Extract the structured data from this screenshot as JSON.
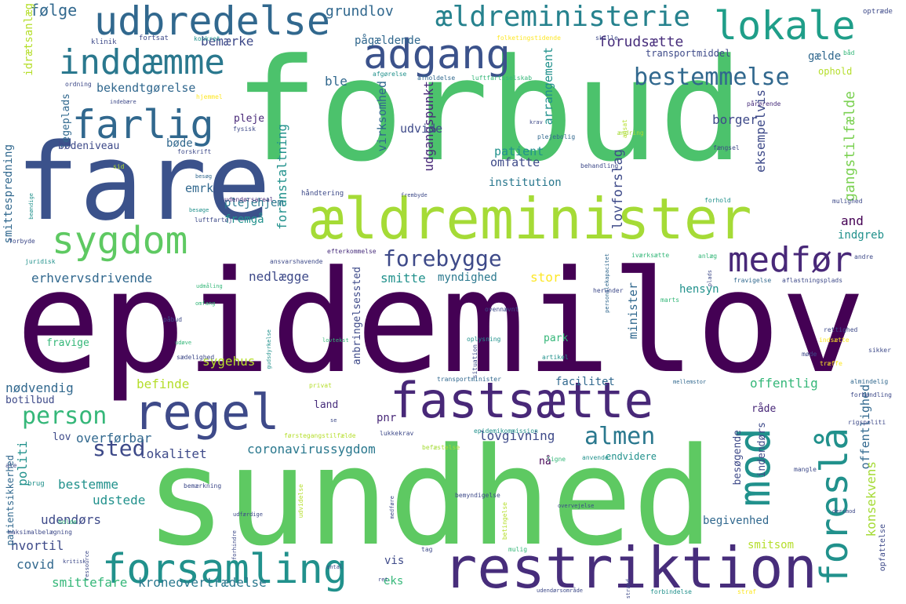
{
  "words": [
    {
      "text": "epidemilov",
      "color": "#440154"
    },
    {
      "text": "forbud",
      "color": "#4cc26c"
    },
    {
      "text": "sundhed",
      "color": "#5ec962"
    },
    {
      "text": "fare",
      "color": "#3b528b"
    },
    {
      "text": "ældreminister",
      "color": "#a5db36"
    },
    {
      "text": "restriktion",
      "color": "#472d7b"
    },
    {
      "text": "fastsætte",
      "color": "#482878"
    },
    {
      "text": "regel",
      "color": "#3e4a89"
    },
    {
      "text": "forsamling",
      "color": "#21918c"
    },
    {
      "text": "adgang",
      "color": "#3b528b"
    },
    {
      "text": "udbredelse",
      "color": "#31688e"
    },
    {
      "text": "inddæmme",
      "color": "#2a788e"
    },
    {
      "text": "lokale",
      "color": "#1f9e89"
    },
    {
      "text": "farlig",
      "color": "#31688e"
    },
    {
      "text": "sygdom",
      "color": "#5ec962"
    },
    {
      "text": "mod",
      "color": "#21918c"
    },
    {
      "text": "medfør",
      "color": "#482878"
    },
    {
      "text": "foreslå",
      "color": "#21918c"
    },
    {
      "text": "ældreministerie",
      "color": "#26828e"
    },
    {
      "text": "bestemmelse",
      "color": "#31688e"
    },
    {
      "text": "forebygge",
      "color": "#3e4a89"
    },
    {
      "text": "person",
      "color": "#35b779"
    },
    {
      "text": "almen",
      "color": "#2a788e"
    },
    {
      "text": "sted",
      "color": "#3e4a89"
    },
    {
      "text": "følge",
      "color": "#31688e"
    },
    {
      "text": "grundlov",
      "color": "#31688e"
    },
    {
      "text": "bemærke",
      "color": "#3e4a89"
    },
    {
      "text": "pågældende",
      "color": "#31688e"
    },
    {
      "text": "forudsætte",
      "color": "#472d7b"
    },
    {
      "text": "transportmiddel",
      "color": "#3e4a89"
    },
    {
      "text": "gælde",
      "color": "#31688e"
    },
    {
      "text": "ophold",
      "color": "#b5de2b"
    },
    {
      "text": "bekendtgørelse",
      "color": "#31688e"
    },
    {
      "text": "legeplads",
      "color": "#31688e"
    },
    {
      "text": "idrætsanlæg",
      "color": "#b5de2b"
    },
    {
      "text": "ble",
      "color": "#31688e"
    },
    {
      "text": "virksomhed",
      "color": "#31688e"
    },
    {
      "text": "udgangspunkt",
      "color": "#482878"
    },
    {
      "text": "arrangement",
      "color": "#21918c"
    },
    {
      "text": "eksempelvis",
      "color": "#3e4a89"
    },
    {
      "text": "gangstilfælde",
      "color": "#7ad151"
    },
    {
      "text": "borger",
      "color": "#3e4a89"
    },
    {
      "text": "pleje",
      "color": "#482878"
    },
    {
      "text": "udvide",
      "color": "#3e4a89"
    },
    {
      "text": "patient",
      "color": "#21918c"
    },
    {
      "text": "bøde",
      "color": "#31688e"
    },
    {
      "text": "bødeniveau",
      "color": "#3e4a89"
    },
    {
      "text": "omfatte",
      "color": "#3e4a89"
    },
    {
      "text": "emrk",
      "color": "#31688e"
    },
    {
      "text": "foranstaltning",
      "color": "#21918c"
    },
    {
      "text": "institution",
      "color": "#2a788e"
    },
    {
      "text": "plejehjem",
      "color": "#2a788e"
    },
    {
      "text": "fremgå",
      "color": "#21918c"
    },
    {
      "text": "lovforslag",
      "color": "#3e4a89"
    },
    {
      "text": "and",
      "color": "#440154"
    },
    {
      "text": "indgreb",
      "color": "#21918c"
    },
    {
      "text": "nedlægge",
      "color": "#3e4a89"
    },
    {
      "text": "erhvervsdrivende",
      "color": "#31688e"
    },
    {
      "text": "smitte",
      "color": "#21918c"
    },
    {
      "text": "myndighed",
      "color": "#2a788e"
    },
    {
      "text": "stor",
      "color": "#fde725"
    },
    {
      "text": "smittespredning",
      "color": "#31688e"
    },
    {
      "text": "hensyn",
      "color": "#21918c"
    },
    {
      "text": "minister",
      "color": "#31688e"
    },
    {
      "text": "park",
      "color": "#35b779"
    },
    {
      "text": "fravige",
      "color": "#35b779"
    },
    {
      "text": "anbringelsessted",
      "color": "#3e4a89"
    },
    {
      "text": "sygehus",
      "color": "#b5de2b"
    },
    {
      "text": "befinde",
      "color": "#b5de2b"
    },
    {
      "text": "facilitet",
      "color": "#31688e"
    },
    {
      "text": "offentlig",
      "color": "#35b779"
    },
    {
      "text": "offentlighed",
      "color": "#31688e"
    },
    {
      "text": "nødvendig",
      "color": "#31688e"
    },
    {
      "text": "botilbud",
      "color": "#3e4a89"
    },
    {
      "text": "land",
      "color": "#472d7b"
    },
    {
      "text": "pnr",
      "color": "#482878"
    },
    {
      "text": "råde",
      "color": "#482878"
    },
    {
      "text": "besøgende",
      "color": "#3e4a89"
    },
    {
      "text": "indendørs",
      "color": "#3e4a89"
    },
    {
      "text": "konsekvens",
      "color": "#a5db36"
    },
    {
      "text": "lov",
      "color": "#3e4a89"
    },
    {
      "text": "overførbar",
      "color": "#31688e"
    },
    {
      "text": "lovgivning",
      "color": "#3e4a89"
    },
    {
      "text": "lokalitet",
      "color": "#3e4a89"
    },
    {
      "text": "coronavirussygdom",
      "color": "#2a788e"
    },
    {
      "text": "endvidere",
      "color": "#21918c"
    },
    {
      "text": "politi",
      "color": "#21918c"
    },
    {
      "text": "bestemme",
      "color": "#21918c"
    },
    {
      "text": "nå",
      "color": "#440154"
    },
    {
      "text": "udstede",
      "color": "#21918c"
    },
    {
      "text": "udendørs",
      "color": "#3e4a89"
    },
    {
      "text": "begivenhed",
      "color": "#31688e"
    },
    {
      "text": "hvortil",
      "color": "#3e4a89"
    },
    {
      "text": "smitsom",
      "color": "#b5de2b"
    },
    {
      "text": "covid",
      "color": "#31688e"
    },
    {
      "text": "vis",
      "color": "#3e4a89"
    },
    {
      "text": "smittefare",
      "color": "#35b779"
    },
    {
      "text": "kroneovertrædelse",
      "color": "#2a788e"
    },
    {
      "text": "eks",
      "color": "#35b779"
    },
    {
      "text": "patientsikkerhed",
      "color": "#31688e"
    },
    {
      "text": "opfattelse",
      "color": "#3e4a89"
    },
    {
      "text": "optræde",
      "color": "#3e4a89"
    },
    {
      "text": "klinik",
      "color": "#3e4a89"
    },
    {
      "text": "fortsat",
      "color": "#3e4a89"
    },
    {
      "text": "konkret",
      "color": "#21918c"
    },
    {
      "text": "folketingstidende",
      "color": "#fde725"
    },
    {
      "text": "skille",
      "color": "#3e4a89"
    },
    {
      "text": "båd",
      "color": "#35b779"
    },
    {
      "text": "ordning",
      "color": "#3e4a89"
    },
    {
      "text": "afgørelse",
      "color": "#21918c"
    },
    {
      "text": "afholdelse",
      "color": "#31688e"
    },
    {
      "text": "luftfartsselskab",
      "color": "#35b779"
    },
    {
      "text": "indebære",
      "color": "#3e4a89"
    },
    {
      "text": "hjemmel",
      "color": "#fde725"
    },
    {
      "text": "pårørende",
      "color": "#472d7b"
    },
    {
      "text": "fysisk",
      "color": "#3e4a89"
    },
    {
      "text": "krav",
      "color": "#3e4a89"
    },
    {
      "text": "plejebolig",
      "color": "#31688e"
    },
    {
      "text": "ansat",
      "color": "#b5de2b"
    },
    {
      "text": "ændring",
      "color": "#a5db36"
    },
    {
      "text": "forskrift",
      "color": "#3e4a89"
    },
    {
      "text": "fængsel",
      "color": "#3e4a89"
    },
    {
      "text": "sid",
      "color": "#b5de2b"
    },
    {
      "text": "besøg",
      "color": "#31688e"
    },
    {
      "text": "behandling",
      "color": "#3e4a89"
    },
    {
      "text": "håndtering",
      "color": "#3e4a89"
    },
    {
      "text": "udendørsareal",
      "color": "#472d7b"
    },
    {
      "text": "frembyde",
      "color": "#3e4a89"
    },
    {
      "text": "forhold",
      "color": "#21918c"
    },
    {
      "text": "mulighed",
      "color": "#3e4a89"
    },
    {
      "text": "beøndige",
      "color": "#21918c"
    },
    {
      "text": "besøge",
      "color": "#21918c"
    },
    {
      "text": "luftfartøj",
      "color": "#3e4a89"
    },
    {
      "text": "forbyde",
      "color": "#3e4a89"
    },
    {
      "text": "efterkommelse",
      "color": "#472d7b"
    },
    {
      "text": "iværksætte",
      "color": "#35b779"
    },
    {
      "text": "anlæg",
      "color": "#35b779"
    },
    {
      "text": "andre",
      "color": "#3e4a89"
    },
    {
      "text": "juridisk",
      "color": "#21918c"
    },
    {
      "text": "ansvarshavende",
      "color": "#3e4a89"
    },
    {
      "text": "udmåling",
      "color": "#35b779"
    },
    {
      "text": "personalekapacitet",
      "color": "#31688e"
    },
    {
      "text": "herunder",
      "color": "#3e4a89"
    },
    {
      "text": "marts",
      "color": "#35b779"
    },
    {
      "text": "plads",
      "color": "#3e4a89"
    },
    {
      "text": "fravigelse",
      "color": "#31688e"
    },
    {
      "text": "aflastningsplads",
      "color": "#3e4a89"
    },
    {
      "text": "omfang",
      "color": "#35b779"
    },
    {
      "text": "påbud",
      "color": "#3e4a89"
    },
    {
      "text": "ovennævnt",
      "color": "#3e4a89"
    },
    {
      "text": "rettighed",
      "color": "#3e4a89"
    },
    {
      "text": "indsætte",
      "color": "#fde725"
    },
    {
      "text": "sikker",
      "color": "#3e4a89"
    },
    {
      "text": "udøve",
      "color": "#35b779"
    },
    {
      "text": "lovtekst",
      "color": "#35b779"
    },
    {
      "text": "sædelighed",
      "color": "#3e4a89"
    },
    {
      "text": "gudsdyrkelse",
      "color": "#21918c"
    },
    {
      "text": "oplysning",
      "color": "#21918c"
    },
    {
      "text": "situation",
      "color": "#3e4a89"
    },
    {
      "text": "artikel",
      "color": "#21918c"
    },
    {
      "text": "møde",
      "color": "#3e4a89"
    },
    {
      "text": "træffe",
      "color": "#fde725"
    },
    {
      "text": "privat",
      "color": "#b5de2b"
    },
    {
      "text": "transportminister",
      "color": "#31688e"
    },
    {
      "text": "mellemstor",
      "color": "#31688e"
    },
    {
      "text": "almindelig",
      "color": "#31688e"
    },
    {
      "text": "forhandling",
      "color": "#3e4a89"
    },
    {
      "text": "rigspoliti",
      "color": "#3e4a89"
    },
    {
      "text": "se",
      "color": "#3e4a89"
    },
    {
      "text": "lukkekrav",
      "color": "#3e4a89"
    },
    {
      "text": "epidemikommission",
      "color": "#21918c"
    },
    {
      "text": "førstegangstilfælde",
      "color": "#b5de2b"
    },
    {
      "text": "befæstelse",
      "color": "#a5db36"
    },
    {
      "text": "ligne",
      "color": "#35b779"
    },
    {
      "text": "anvende",
      "color": "#21918c"
    },
    {
      "text": "mangle",
      "color": "#3e4a89"
    },
    {
      "text": "ale",
      "color": "#3e4a89"
    },
    {
      "text": "brug",
      "color": "#21918c"
    },
    {
      "text": "bemærkning",
      "color": "#3e4a89"
    },
    {
      "text": "udfærdige",
      "color": "#3e4a89"
    },
    {
      "text": "udvidelse",
      "color": "#b5de2b"
    },
    {
      "text": "medføre",
      "color": "#3e4a89"
    },
    {
      "text": "bemyndigelse",
      "color": "#3e4a89"
    },
    {
      "text": "betingelse",
      "color": "#b5de2b"
    },
    {
      "text": "overvejelse",
      "color": "#3e4a89"
    },
    {
      "text": "derimod",
      "color": "#3e4a89"
    },
    {
      "text": "holde",
      "color": "#35b779"
    },
    {
      "text": "maksimalbelægning",
      "color": "#3e4a89"
    },
    {
      "text": "forhindre",
      "color": "#3e4a89"
    },
    {
      "text": "tag",
      "color": "#3e4a89"
    },
    {
      "text": "mulig",
      "color": "#35b779"
    },
    {
      "text": "kritisk",
      "color": "#3e4a89"
    },
    {
      "text": "ressource",
      "color": "#3e4a89"
    },
    {
      "text": "antal",
      "color": "#3e4a89"
    },
    {
      "text": "ret",
      "color": "#3e4a89"
    },
    {
      "text": "udendørsområde",
      "color": "#3e4a89"
    },
    {
      "text": "strand",
      "color": "#3e4a89"
    },
    {
      "text": "forbindelse",
      "color": "#21918c"
    },
    {
      "text": "straf",
      "color": "#fde725"
    }
  ]
}
